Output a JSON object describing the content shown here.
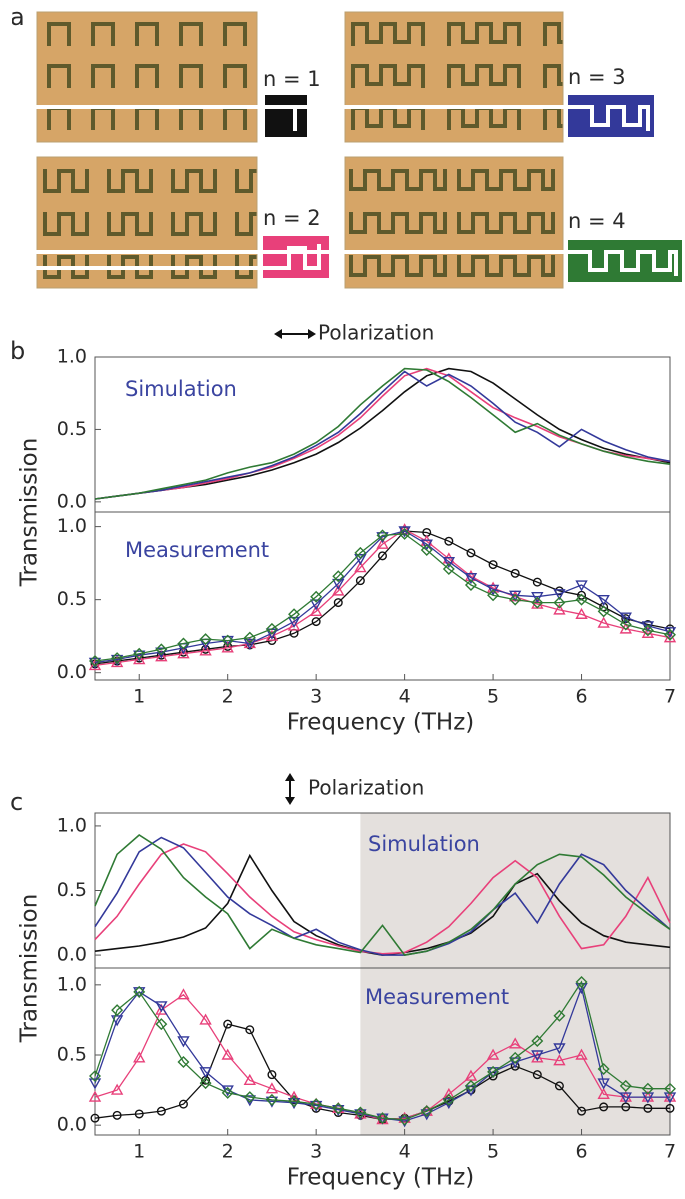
{
  "panel_labels": [
    "a",
    "b",
    "c"
  ],
  "legend": [
    {
      "label": "n = 1",
      "color": "#111111"
    },
    {
      "label": "n = 2",
      "color": "#e8407a"
    },
    {
      "label": "n = 3",
      "color": "#33399a"
    },
    {
      "label": "n = 4",
      "color": "#2f7a34"
    }
  ],
  "chart_data": [
    {
      "type": "line",
      "title": "Polarization",
      "annotation": "Simulation",
      "ylabel": "Transmission",
      "x": [
        0.5,
        0.75,
        1,
        1.25,
        1.5,
        1.75,
        2,
        2.25,
        2.5,
        2.75,
        3,
        3.25,
        3.5,
        3.75,
        4,
        4.25,
        4.5,
        4.75,
        5,
        5.25,
        5.5,
        5.75,
        6,
        6.25,
        6.5,
        6.75,
        7
      ],
      "xlim": [
        0.5,
        7
      ],
      "ylim": [
        -0.07,
        1.0
      ],
      "yticks": [
        {
          "value": 0,
          "label": "0.0"
        },
        {
          "value": 0.5,
          "label": "0.5"
        },
        {
          "value": 1,
          "label": "1.0"
        }
      ],
      "series": [
        {
          "color": "#111111",
          "values": [
            0.02,
            0.04,
            0.06,
            0.08,
            0.1,
            0.12,
            0.15,
            0.18,
            0.22,
            0.27,
            0.33,
            0.41,
            0.51,
            0.63,
            0.76,
            0.87,
            0.92,
            0.9,
            0.82,
            0.71,
            0.6,
            0.5,
            0.43,
            0.37,
            0.33,
            0.3,
            0.27
          ]
        },
        {
          "color": "#e8407a",
          "values": [
            0.02,
            0.04,
            0.06,
            0.08,
            0.1,
            0.13,
            0.16,
            0.2,
            0.24,
            0.3,
            0.37,
            0.46,
            0.58,
            0.73,
            0.87,
            0.92,
            0.87,
            0.76,
            0.65,
            0.58,
            0.52,
            0.45,
            0.4,
            0.35,
            0.32,
            0.3,
            0.28
          ]
        },
        {
          "color": "#33399a",
          "values": [
            0.02,
            0.04,
            0.06,
            0.08,
            0.11,
            0.14,
            0.17,
            0.2,
            0.25,
            0.31,
            0.39,
            0.48,
            0.61,
            0.76,
            0.9,
            0.8,
            0.88,
            0.8,
            0.68,
            0.55,
            0.48,
            0.38,
            0.5,
            0.42,
            0.36,
            0.31,
            0.28
          ]
        },
        {
          "color": "#2f7a34",
          "values": [
            0.02,
            0.04,
            0.06,
            0.09,
            0.12,
            0.15,
            0.2,
            0.24,
            0.27,
            0.33,
            0.41,
            0.52,
            0.67,
            0.8,
            0.92,
            0.91,
            0.83,
            0.72,
            0.6,
            0.48,
            0.54,
            0.46,
            0.4,
            0.35,
            0.31,
            0.28,
            0.26
          ]
        }
      ]
    },
    {
      "type": "line",
      "annotation": "Measurement",
      "xlabel": "Frequency (THz)",
      "x": [
        0.5,
        0.75,
        1,
        1.25,
        1.5,
        1.75,
        2,
        2.25,
        2.5,
        2.75,
        3,
        3.25,
        3.5,
        3.75,
        4,
        4.25,
        4.5,
        4.75,
        5,
        5.25,
        5.5,
        5.75,
        6,
        6.25,
        6.5,
        6.75,
        7
      ],
      "xlim": [
        0.5,
        7
      ],
      "ylim": [
        -0.05,
        1.1
      ],
      "xticks": [
        1,
        2,
        3,
        4,
        5,
        6,
        7
      ],
      "yticks": [
        {
          "value": 0,
          "label": "0.0"
        },
        {
          "value": 0.5,
          "label": "0.5"
        },
        {
          "value": 1,
          "label": "1.0"
        }
      ],
      "series": [
        {
          "color": "#111111",
          "marker": "o",
          "values": [
            0.06,
            0.08,
            0.1,
            0.12,
            0.14,
            0.16,
            0.18,
            0.19,
            0.22,
            0.27,
            0.35,
            0.48,
            0.63,
            0.8,
            0.97,
            0.96,
            0.9,
            0.82,
            0.74,
            0.68,
            0.62,
            0.56,
            0.53,
            0.45,
            0.37,
            0.33,
            0.3
          ]
        },
        {
          "color": "#e8407a",
          "marker": "^",
          "values": [
            0.05,
            0.07,
            0.09,
            0.11,
            0.13,
            0.15,
            0.17,
            0.2,
            0.25,
            0.32,
            0.42,
            0.56,
            0.72,
            0.88,
            0.98,
            0.9,
            0.78,
            0.66,
            0.58,
            0.52,
            0.47,
            0.43,
            0.4,
            0.34,
            0.3,
            0.27,
            0.24
          ]
        },
        {
          "color": "#33399a",
          "marker": "v",
          "values": [
            0.07,
            0.09,
            0.12,
            0.14,
            0.17,
            0.2,
            0.22,
            0.2,
            0.27,
            0.35,
            0.47,
            0.61,
            0.78,
            0.93,
            0.97,
            0.88,
            0.76,
            0.65,
            0.57,
            0.53,
            0.52,
            0.54,
            0.6,
            0.5,
            0.38,
            0.32,
            0.28
          ]
        },
        {
          "color": "#2f7a34",
          "marker": "D",
          "values": [
            0.08,
            0.1,
            0.13,
            0.16,
            0.2,
            0.23,
            0.22,
            0.24,
            0.3,
            0.4,
            0.52,
            0.66,
            0.82,
            0.94,
            0.95,
            0.84,
            0.71,
            0.6,
            0.53,
            0.5,
            0.48,
            0.48,
            0.5,
            0.42,
            0.33,
            0.29,
            0.26
          ]
        }
      ]
    },
    {
      "type": "line",
      "title": "Polarization",
      "annotation": "Simulation",
      "ylabel": "Transmission",
      "x": [
        0.5,
        0.75,
        1,
        1.25,
        1.5,
        1.75,
        2,
        2.25,
        2.5,
        2.75,
        3,
        3.25,
        3.5,
        3.75,
        4,
        4.25,
        4.5,
        4.75,
        5,
        5.25,
        5.5,
        5.75,
        6,
        6.25,
        6.5,
        6.75,
        7
      ],
      "xlim": [
        0.5,
        7
      ],
      "ylim": [
        -0.1,
        1.1
      ],
      "shade_x": [
        3.5,
        7
      ],
      "yticks": [
        {
          "value": 0,
          "label": "0.0"
        },
        {
          "value": 0.5,
          "label": "0.5"
        },
        {
          "value": 1,
          "label": "1.0"
        }
      ],
      "series": [
        {
          "color": "#111111",
          "values": [
            0.03,
            0.05,
            0.07,
            0.1,
            0.14,
            0.21,
            0.4,
            0.77,
            0.5,
            0.26,
            0.15,
            0.08,
            0.03,
            0.0,
            0.02,
            0.05,
            0.1,
            0.17,
            0.3,
            0.55,
            0.63,
            0.42,
            0.25,
            0.15,
            0.1,
            0.08,
            0.06
          ]
        },
        {
          "color": "#e8407a",
          "values": [
            0.12,
            0.3,
            0.55,
            0.78,
            0.86,
            0.8,
            0.63,
            0.45,
            0.3,
            0.18,
            0.12,
            0.07,
            0.03,
            0.01,
            0.02,
            0.1,
            0.22,
            0.4,
            0.6,
            0.73,
            0.6,
            0.3,
            0.05,
            0.08,
            0.3,
            0.6,
            0.25
          ]
        },
        {
          "color": "#33399a",
          "values": [
            0.22,
            0.48,
            0.8,
            0.91,
            0.83,
            0.64,
            0.45,
            0.32,
            0.23,
            0.13,
            0.2,
            0.1,
            0.04,
            0.0,
            0.0,
            0.03,
            0.09,
            0.18,
            0.35,
            0.48,
            0.25,
            0.55,
            0.78,
            0.7,
            0.5,
            0.35,
            0.2
          ]
        },
        {
          "color": "#2f7a34",
          "values": [
            0.38,
            0.78,
            0.93,
            0.82,
            0.6,
            0.45,
            0.32,
            0.05,
            0.2,
            0.13,
            0.08,
            0.05,
            0.02,
            0.23,
            0.0,
            0.03,
            0.1,
            0.2,
            0.35,
            0.55,
            0.7,
            0.78,
            0.76,
            0.62,
            0.45,
            0.32,
            0.2
          ]
        }
      ]
    },
    {
      "type": "line",
      "annotation": "Measurement",
      "xlabel": "Frequency (THz)",
      "x": [
        0.5,
        0.75,
        1,
        1.25,
        1.5,
        1.75,
        2,
        2.25,
        2.5,
        2.75,
        3,
        3.25,
        3.5,
        3.75,
        4,
        4.25,
        4.5,
        4.75,
        5,
        5.25,
        5.5,
        5.75,
        6,
        6.25,
        6.5,
        6.75,
        7
      ],
      "xlim": [
        0.5,
        7
      ],
      "ylim": [
        -0.07,
        1.12
      ],
      "shade_x": [
        3.5,
        7
      ],
      "xticks": [
        1,
        2,
        3,
        4,
        5,
        6,
        7
      ],
      "yticks": [
        {
          "value": 0,
          "label": "0.0"
        },
        {
          "value": 0.5,
          "label": "0.5"
        },
        {
          "value": 1,
          "label": "1.0"
        }
      ],
      "series": [
        {
          "color": "#111111",
          "marker": "o",
          "values": [
            0.05,
            0.07,
            0.08,
            0.1,
            0.15,
            0.32,
            0.72,
            0.68,
            0.36,
            0.18,
            0.12,
            0.09,
            0.07,
            0.04,
            0.05,
            0.1,
            0.17,
            0.25,
            0.35,
            0.42,
            0.36,
            0.28,
            0.1,
            0.13,
            0.13,
            0.12,
            0.12
          ]
        },
        {
          "color": "#e8407a",
          "marker": "^",
          "values": [
            0.2,
            0.25,
            0.48,
            0.82,
            0.93,
            0.75,
            0.5,
            0.32,
            0.26,
            0.2,
            0.15,
            0.12,
            0.08,
            0.04,
            0.05,
            0.1,
            0.22,
            0.35,
            0.5,
            0.58,
            0.48,
            0.46,
            0.5,
            0.22,
            0.2,
            0.2,
            0.2
          ]
        },
        {
          "color": "#33399a",
          "marker": "v",
          "values": [
            0.3,
            0.75,
            0.95,
            0.85,
            0.6,
            0.38,
            0.25,
            0.18,
            0.17,
            0.16,
            0.14,
            0.11,
            0.08,
            0.05,
            0.03,
            0.08,
            0.16,
            0.25,
            0.38,
            0.45,
            0.5,
            0.55,
            0.98,
            0.3,
            0.2,
            0.2,
            0.2
          ]
        },
        {
          "color": "#2f7a34",
          "marker": "D",
          "values": [
            0.35,
            0.82,
            0.95,
            0.72,
            0.45,
            0.3,
            0.23,
            0.2,
            0.18,
            0.17,
            0.15,
            0.12,
            0.09,
            0.05,
            0.04,
            0.1,
            0.18,
            0.28,
            0.38,
            0.48,
            0.6,
            0.78,
            1.02,
            0.4,
            0.28,
            0.26,
            0.26
          ]
        }
      ]
    }
  ]
}
